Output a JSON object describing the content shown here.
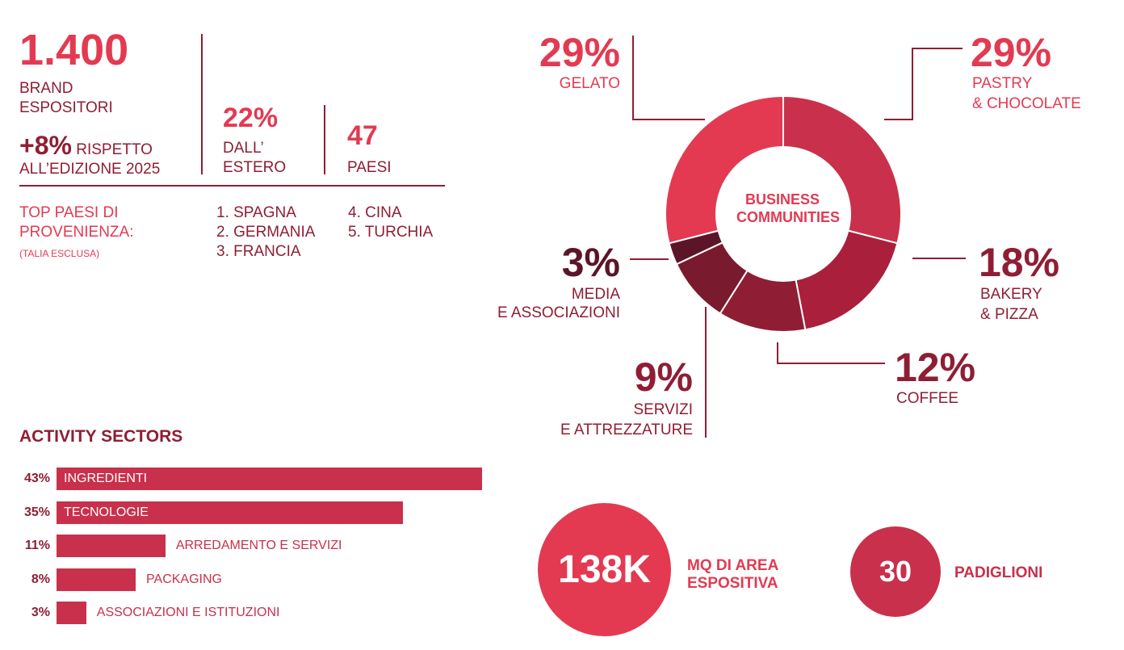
{
  "colors": {
    "accent": "#e33a52",
    "dark": "#8f1e34",
    "donut": [
      "#e33a52",
      "#c9304b",
      "#a91f3c",
      "#8f1e34",
      "#7a1a2f",
      "#5c1528"
    ]
  },
  "stats": {
    "brands_value": "1.400",
    "brands_label_1": "BRAND",
    "brands_label_2": "ESPOSITORI",
    "growth_value": "+8%",
    "growth_label_1": "RISPETTO",
    "growth_label_2": "ALL’EDIZIONE 2025",
    "foreign_value": "22%",
    "foreign_label_1": "DALL’",
    "foreign_label_2": "ESTERO",
    "countries_value": "47",
    "countries_label": "PAESI"
  },
  "top_countries": {
    "title_1": "TOP PAESI DI",
    "title_2": "PROVENIENZA:",
    "note": "(TALIA ESCLUSA)",
    "items": [
      "1. SPAGNA",
      "2. GERMANIA",
      "3. FRANCIA",
      "4. CINA",
      "5. TURCHIA"
    ]
  },
  "summary": {
    "area_value": "138K",
    "area_label_1": "MQ DI AREA",
    "area_label_2": "ESPOSITIVA",
    "pavilions_value": "30",
    "pavilions_label": "PADIGLIONI"
  },
  "chart_data": [
    {
      "type": "pie",
      "title": "BUSINESS COMMUNITIES",
      "slices": [
        {
          "value": 29,
          "label": "29%",
          "name_1": "PASTRY",
          "name_2": "& CHOCOLATE"
        },
        {
          "value": 18,
          "label": "18%",
          "name_1": "BAKERY",
          "name_2": "& PIZZA"
        },
        {
          "value": 12,
          "label": "12%",
          "name_1": "COFFEE",
          "name_2": ""
        },
        {
          "value": 9,
          "label": "9%",
          "name_1": "SERVIZI",
          "name_2": "E ATTREZZATURE"
        },
        {
          "value": 3,
          "label": "3%",
          "name_1": "MEDIA",
          "name_2": "E ASSOCIAZIONI"
        },
        {
          "value": 29,
          "label": "29%",
          "name_1": "GELATO",
          "name_2": ""
        }
      ]
    },
    {
      "type": "bar",
      "title": "ACTIVITY SECTORS",
      "categories": [
        "INGREDIENTI",
        "TECNOLOGIE",
        "ARREDAMENTO E SERVIZI",
        "PACKAGING",
        "ASSOCIAZIONI E ISTITUZIONI"
      ],
      "values": [
        43,
        35,
        11,
        8,
        3
      ],
      "value_labels": [
        "43%",
        "35%",
        "11%",
        "8%",
        "3%"
      ]
    }
  ]
}
